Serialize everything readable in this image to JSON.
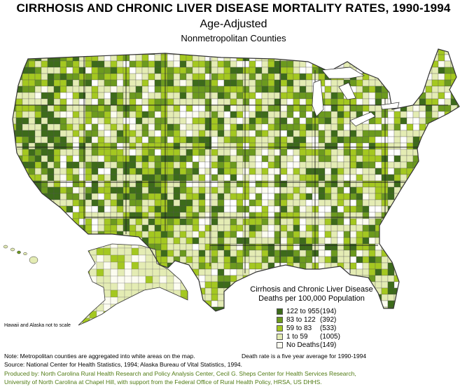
{
  "title": "CIRRHOSIS AND CHRONIC LIVER DISEASE MORTALITY RATES, 1990-1994",
  "subtitle": "Age-Adjusted",
  "subtitle2": "Nonmetropolitan Counties",
  "legend": {
    "title_line1": "Cirrhosis and Chronic Liver Disease",
    "title_line2": "Deaths per 100,000 Population",
    "items": [
      {
        "range": "122 to 955",
        "count": "(194)",
        "color": "#3d6b1a"
      },
      {
        "range": "83 to 122",
        "count": "(392)",
        "color": "#6c9a1e"
      },
      {
        "range": "59 to 83",
        "count": "(533)",
        "color": "#a4c820"
      },
      {
        "range": "1 to 59",
        "count": "(1005)",
        "color": "#e4ecb4"
      },
      {
        "range": "No Deaths",
        "count": "(149)",
        "color": "#fcfcf0"
      }
    ]
  },
  "notes": {
    "hawaii_alaska": "Hawaii and Alaska not to scale",
    "metro": "Note: Metropolitan counties are aggregated into white areas on the map.",
    "death_rate": "Death rate is a five year average for 1990-1994",
    "source": "Source: National Center for Health Statistics, 1994; Alaska Bureau of Vital Statistics, 1994.",
    "produced_line1": "Produced by: North Carolina Rural Health Research and Policy Analysis Center, Cecil G. Sheps Center for Health Services Research,",
    "produced_line2": "University of North Carolina at Chapel Hill, with support from the Federal Office of Rural Health Policy, HRSA, US DHHS."
  },
  "colors": {
    "outline": "#333333",
    "metro_white": "#ffffff"
  }
}
